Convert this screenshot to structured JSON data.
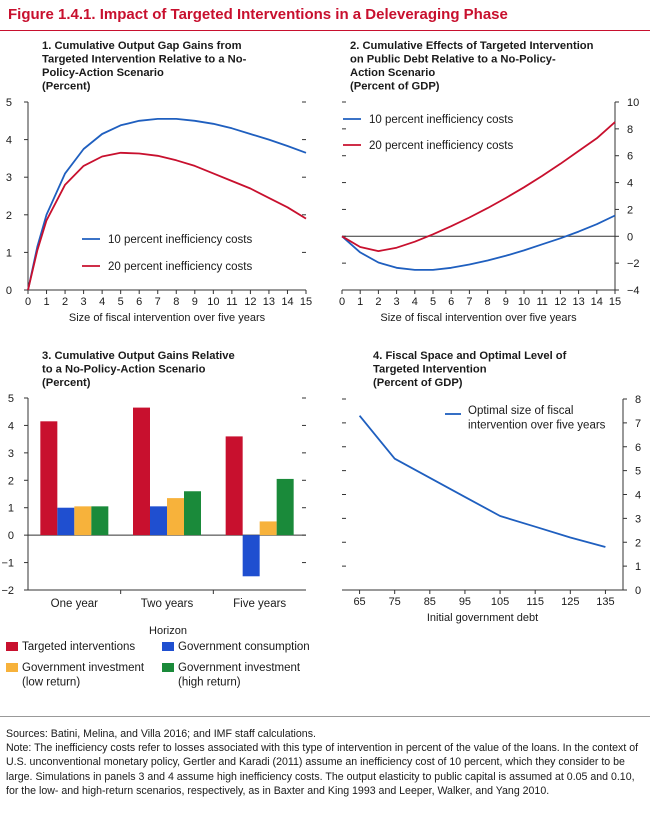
{
  "figure_title": "Figure 1.4.1. Impact of Targeted Interventions in a Deleveraging Phase",
  "notes": {
    "sources": "Sources: Batini, Melina, and Villa 2016; and IMF staff calculations.",
    "note": "Note: The inefficiency costs refer to losses associated with this type of intervention in percent of the value of the loans. In the context of U.S. unconventional monetary policy, Gertler and Karadi (2011) assume an inefficiency cost of 10 percent, which they consider to be large. Simulations in panels 3 and 4 assume high inefficiency costs. The output elasticity to public capital is assumed at 0.05 and 0.10, for the low- and high-return scenarios, respectively, as in Baxter and King 1993 and Leeper, Walker, and Yang 2010."
  },
  "colors": {
    "title": "#c8102e",
    "blue": "#1f5fbf",
    "red": "#c8102e",
    "bar_red": "#c8102e",
    "bar_blue": "#1f4fd0",
    "bar_yellow": "#f7b23b",
    "bar_green": "#1a8a3a"
  },
  "chart_data": [
    {
      "panel": 1,
      "type": "line",
      "title": [
        "1. Cumulative Output Gap Gains from",
        "Targeted Intervention Relative to a No-",
        "Policy-Action Scenario",
        "(Percent)"
      ],
      "xlabel": "Size of fiscal intervention over five years",
      "ylabel": "",
      "xlim": [
        0,
        15
      ],
      "ylim": [
        0,
        5
      ],
      "xticks": [
        0,
        1,
        2,
        3,
        4,
        5,
        6,
        7,
        8,
        9,
        10,
        11,
        12,
        13,
        14,
        15
      ],
      "yticks": [
        0,
        1,
        2,
        3,
        4,
        5
      ],
      "y_axis_side": "left",
      "legend_position": "lower-center",
      "series": [
        {
          "name": "10 percent inefficiency costs",
          "color": "blue",
          "x": [
            0,
            0.5,
            1,
            2,
            3,
            4,
            5,
            6,
            7,
            8,
            9,
            10,
            11,
            12,
            13,
            14,
            15
          ],
          "y": [
            0,
            1.15,
            2.0,
            3.1,
            3.75,
            4.15,
            4.38,
            4.5,
            4.55,
            4.55,
            4.5,
            4.42,
            4.3,
            4.15,
            4.0,
            3.83,
            3.65
          ]
        },
        {
          "name": "20 percent inefficiency costs",
          "color": "red",
          "x": [
            0,
            0.5,
            1,
            2,
            3,
            4,
            5,
            6,
            7,
            8,
            9,
            10,
            11,
            12,
            13,
            14,
            15
          ],
          "y": [
            0,
            1.05,
            1.85,
            2.8,
            3.3,
            3.55,
            3.65,
            3.63,
            3.57,
            3.45,
            3.3,
            3.1,
            2.9,
            2.7,
            2.45,
            2.2,
            1.9
          ]
        }
      ]
    },
    {
      "panel": 2,
      "type": "line",
      "title": [
        "2. Cumulative Effects of Targeted Intervention",
        "on Public Debt Relative to a No-Policy-",
        "Action Scenario",
        "(Percent of GDP)"
      ],
      "xlabel": "Size of fiscal intervention over five years",
      "ylabel": "",
      "xlim": [
        0,
        15
      ],
      "ylim": [
        -4,
        10
      ],
      "xticks": [
        0,
        1,
        2,
        3,
        4,
        5,
        6,
        7,
        8,
        9,
        10,
        11,
        12,
        13,
        14,
        15
      ],
      "yticks": [
        -4,
        -2,
        0,
        2,
        4,
        6,
        8,
        10
      ],
      "y_axis_side": "right",
      "legend_position": "upper-left",
      "series": [
        {
          "name": "10 percent inefficiency costs",
          "color": "blue",
          "x": [
            0,
            1,
            2,
            3,
            4,
            5,
            6,
            7,
            8,
            9,
            10,
            11,
            12,
            13,
            14,
            15
          ],
          "y": [
            0,
            -1.2,
            -1.95,
            -2.35,
            -2.5,
            -2.5,
            -2.35,
            -2.1,
            -1.8,
            -1.45,
            -1.05,
            -0.6,
            -0.15,
            0.35,
            0.9,
            1.55
          ]
        },
        {
          "name": "20 percent inefficiency costs",
          "color": "red",
          "x": [
            0,
            1,
            2,
            3,
            4,
            5,
            6,
            7,
            8,
            9,
            10,
            11,
            12,
            13,
            14,
            15
          ],
          "y": [
            0,
            -0.8,
            -1.1,
            -0.85,
            -0.4,
            0.15,
            0.75,
            1.4,
            2.1,
            2.85,
            3.65,
            4.5,
            5.4,
            6.35,
            7.3,
            8.5
          ]
        }
      ]
    },
    {
      "panel": 3,
      "type": "bar",
      "title": [
        "3. Cumulative Output Gains Relative",
        "to a No-Policy-Action Scenario",
        "(Percent)"
      ],
      "xlabel": "Horizon",
      "ylabel": "",
      "ylim": [
        -2,
        5
      ],
      "yticks": [
        -2,
        -1,
        0,
        1,
        2,
        3,
        4,
        5
      ],
      "y_axis_side": "left",
      "categories": [
        "One year",
        "Two years",
        "Five years"
      ],
      "legend_position": "bottom",
      "series": [
        {
          "name": "Targeted interventions",
          "color": "bar_red",
          "values": [
            4.15,
            4.65,
            3.6
          ]
        },
        {
          "name": "Government consumption",
          "color": "bar_blue",
          "values": [
            1.0,
            1.05,
            -1.5
          ]
        },
        {
          "name": "Government investment (low return)",
          "legend_lines": [
            "Government investment",
            "(low return)"
          ],
          "color": "bar_yellow",
          "values": [
            1.05,
            1.35,
            0.5
          ]
        },
        {
          "name": "Government investment (high return)",
          "legend_lines": [
            "Government investment",
            "(high return)"
          ],
          "color": "bar_green",
          "values": [
            1.05,
            1.6,
            2.05
          ]
        }
      ]
    },
    {
      "panel": 4,
      "type": "line",
      "title": [
        "4. Fiscal Space and Optimal Level of",
        "Targeted Intervention",
        "(Percent of GDP)"
      ],
      "xlabel": "Initial government debt",
      "ylabel": "",
      "xlim": [
        60,
        140
      ],
      "ylim": [
        0,
        8
      ],
      "xticks": [
        65,
        75,
        85,
        95,
        105,
        115,
        125,
        135
      ],
      "yticks": [
        0,
        1,
        2,
        3,
        4,
        5,
        6,
        7,
        8
      ],
      "y_axis_side": "right",
      "legend_position": "upper-right",
      "series": [
        {
          "name": "Optimal size of fiscal intervention over five years",
          "legend_lines": [
            "Optimal size of fiscal",
            "intervention over five years"
          ],
          "color": "blue",
          "x": [
            65,
            75,
            85,
            95,
            105,
            115,
            125,
            135
          ],
          "y": [
            7.3,
            5.5,
            4.7,
            3.9,
            3.1,
            2.65,
            2.2,
            1.8
          ]
        }
      ]
    }
  ]
}
